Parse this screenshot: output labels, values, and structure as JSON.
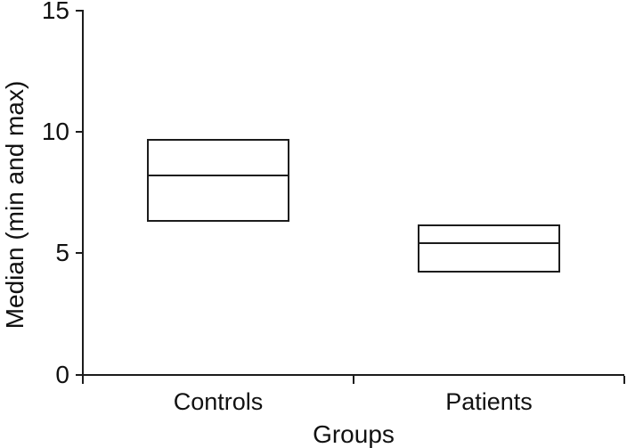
{
  "chart_data": {
    "type": "box",
    "xlabel": "Groups",
    "ylabel": "Median (min and max)",
    "categories": [
      "Controls",
      "Patients"
    ],
    "series": [
      {
        "name": "Controls",
        "min": 6.3,
        "median": 8.2,
        "max": 9.7
      },
      {
        "name": "Patients",
        "min": 4.2,
        "median": 5.4,
        "max": 6.2
      }
    ],
    "ylim": [
      0,
      15
    ],
    "yticks": [
      0,
      5,
      10,
      15
    ],
    "ytick_labels": [
      "0",
      "5",
      "10",
      "15"
    ],
    "grid": false,
    "legend": false,
    "box_fill": "#ffffff",
    "line_color": "#1c1c1c",
    "text_color": "#111111",
    "background": "#ffffff"
  }
}
